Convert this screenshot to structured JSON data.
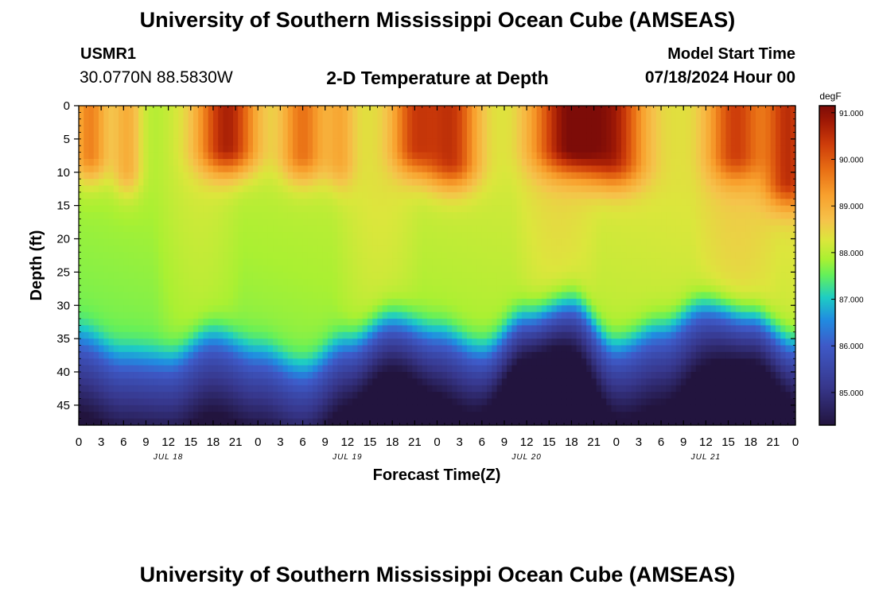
{
  "header": {
    "title": "University of Southern Mississippi Ocean Cube (AMSEAS)",
    "station_id": "USMR1",
    "station_coords": "30.0770N  88.5830W",
    "subtitle": "2-D Temperature at Depth",
    "start_label": "Model Start Time",
    "start_value": "07/18/2024 Hour 00"
  },
  "footer": {
    "title": "University of Southern Mississippi Ocean Cube (AMSEAS)"
  },
  "chart_data": {
    "type": "heatmap",
    "title": "2-D Temperature at Depth",
    "xlabel": "Forecast Time(Z)",
    "ylabel": "Depth (ft)",
    "x_range_hours": [
      0,
      96
    ],
    "x_ticks": [
      "0",
      "3",
      "6",
      "9",
      "12",
      "15",
      "18",
      "21",
      "0",
      "3",
      "6",
      "9",
      "12",
      "15",
      "18",
      "21",
      "0",
      "3",
      "6",
      "9",
      "12",
      "15",
      "18",
      "21",
      "0",
      "3",
      "6",
      "9",
      "12",
      "15",
      "18",
      "21",
      "0"
    ],
    "date_labels": [
      {
        "label": "JUL 18",
        "hour": 12
      },
      {
        "label": "JUL 19",
        "hour": 36
      },
      {
        "label": "JUL 20",
        "hour": 60
      },
      {
        "label": "JUL 21",
        "hour": 84
      }
    ],
    "y_range_ft": [
      0,
      48
    ],
    "y_ticks": [
      0,
      5,
      10,
      15,
      20,
      25,
      30,
      35,
      40,
      45
    ],
    "colorbar": {
      "unit": "degF",
      "min": 84.3,
      "max": 91.15,
      "ticks": [
        "91.000",
        "90.000",
        "89.000",
        "88.000",
        "87.000",
        "86.000",
        "85.000"
      ],
      "tick_values": [
        91,
        90,
        89,
        88,
        87,
        86,
        85
      ]
    },
    "thermocline_depth_ft": {
      "hours": [
        0,
        6,
        12,
        18,
        24,
        30,
        36,
        42,
        48,
        54,
        60,
        66,
        72,
        78,
        84,
        90,
        96
      ],
      "values": [
        34,
        37,
        37.5,
        34,
        36.5,
        39,
        35,
        31.5,
        33.5,
        36,
        31,
        29,
        35.5,
        33,
        29.5,
        31,
        35
      ]
    },
    "surface_warm_peaks": [
      {
        "hour": 1.5,
        "temp_degF": 89.8,
        "depth_ft": 7,
        "width_h": 2.5
      },
      {
        "hour": 6.5,
        "temp_degF": 89.2,
        "depth_ft": 9,
        "width_h": 2
      },
      {
        "hour": 20,
        "temp_degF": 90.7,
        "depth_ft": 6,
        "width_h": 4
      },
      {
        "hour": 30,
        "temp_degF": 89.8,
        "depth_ft": 7,
        "width_h": 3
      },
      {
        "hour": 35,
        "temp_degF": 89.0,
        "depth_ft": 8,
        "width_h": 2
      },
      {
        "hour": 45,
        "temp_degF": 90.0,
        "depth_ft": 6,
        "width_h": 3
      },
      {
        "hour": 50,
        "temp_degF": 90.3,
        "depth_ft": 8,
        "width_h": 3.5
      },
      {
        "hour": 66,
        "temp_degF": 90.7,
        "depth_ft": 6,
        "width_h": 5
      },
      {
        "hour": 72,
        "temp_degF": 90.0,
        "depth_ft": 8,
        "width_h": 4
      },
      {
        "hour": 88,
        "temp_degF": 89.8,
        "depth_ft": 7,
        "width_h": 3.5
      },
      {
        "hour": 95,
        "temp_degF": 90.2,
        "depth_ft": 11,
        "width_h": 3
      }
    ],
    "bottom_cold_minima": [
      {
        "hour": 62,
        "temp_degF": 84.3
      },
      {
        "hour": 90,
        "temp_degF": 84.7
      },
      {
        "hour": 42,
        "temp_degF": 85.0
      }
    ]
  }
}
